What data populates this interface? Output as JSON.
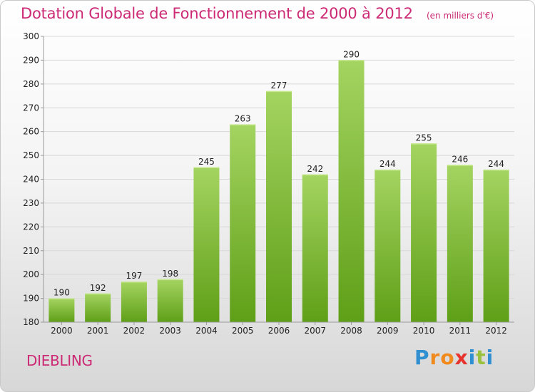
{
  "header": {
    "title": "Dotation Globale de Fonctionnement de 2000 à 2012",
    "subtitle": "(en milliers d'€)"
  },
  "footer": {
    "town": "DIEBLING",
    "logo_text": "Proxiti",
    "logo_letters": [
      {
        "char": "P",
        "color": "#2f8fd1"
      },
      {
        "char": "r",
        "color": "#f08a1c"
      },
      {
        "char": "o",
        "color": "#f08a1c"
      },
      {
        "char": "x",
        "color": "#e8322e"
      },
      {
        "char": "i",
        "color": "#2f8fd1"
      },
      {
        "char": "t",
        "color": "#9ac13b"
      },
      {
        "char": "i",
        "color": "#2f8fd1"
      }
    ]
  },
  "colors": {
    "title": "#cc2a74",
    "bar_top": "#a4d461",
    "bar_bottom": "#5f9f17",
    "grid": "#d8d8d8",
    "axis": "#9a9a9a"
  },
  "chart_data": {
    "type": "bar",
    "title": "Dotation Globale de Fonctionnement de 2000 à 2012",
    "subtitle": "(en milliers d'€)",
    "categories": [
      "2000",
      "2001",
      "2002",
      "2003",
      "2004",
      "2005",
      "2006",
      "2007",
      "2008",
      "2009",
      "2010",
      "2011",
      "2012"
    ],
    "values": [
      190,
      192,
      197,
      198,
      245,
      263,
      277,
      242,
      290,
      244,
      255,
      246,
      244
    ],
    "ylim": [
      180,
      300
    ],
    "yticks": [
      180,
      190,
      200,
      210,
      220,
      230,
      240,
      250,
      260,
      270,
      280,
      290,
      300
    ],
    "grid": true,
    "legend": "none",
    "xlabel": "",
    "ylabel": ""
  }
}
